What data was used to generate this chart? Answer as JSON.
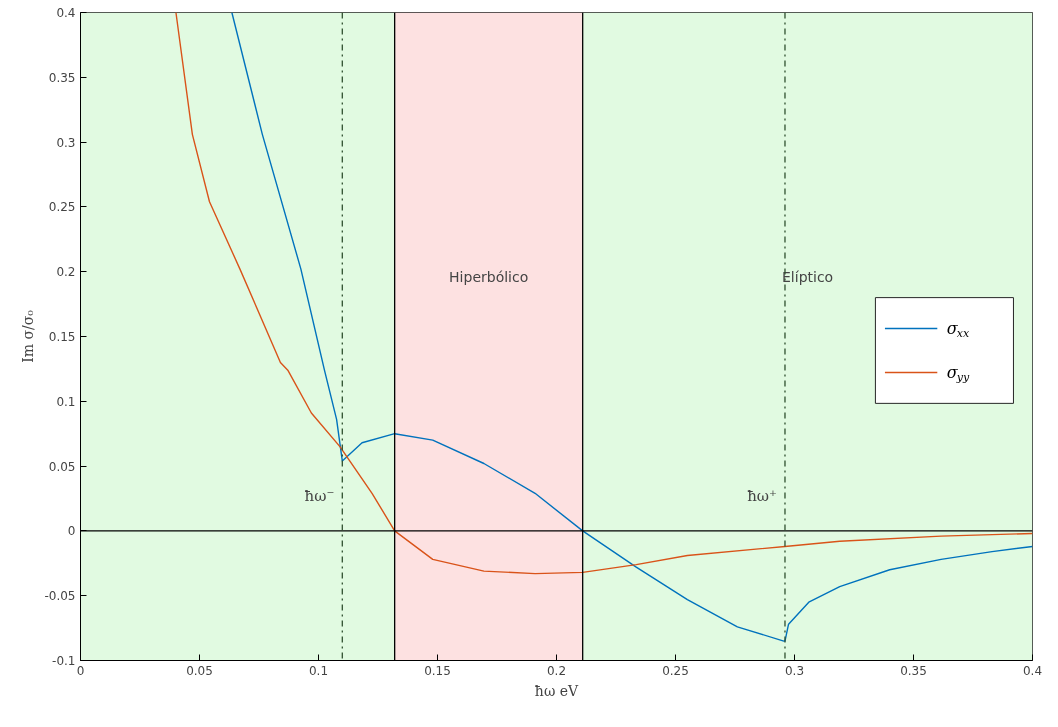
{
  "chart_data": {
    "type": "line",
    "xlabel": "ħω eV",
    "ylabel": "Im σ/σ₀",
    "xlim": [
      0,
      0.4
    ],
    "ylim": [
      -0.1,
      0.4
    ],
    "xticks": [
      0,
      0.05,
      0.1,
      0.15,
      0.2,
      0.25,
      0.3,
      0.35,
      0.4
    ],
    "yticks": [
      -0.1,
      -0.05,
      0,
      0.05,
      0.1,
      0.15,
      0.2,
      0.25,
      0.3,
      0.35,
      0.4
    ],
    "grid": false,
    "legend": "right",
    "line_style": "solid",
    "marker": "none",
    "series": [
      {
        "name": "σ$_{xx}$",
        "color": "#0072bd",
        "x": [
          0.0636,
          0.0764,
          0.0926,
          0.1025,
          0.1076,
          0.11,
          0.1183,
          0.132,
          0.148,
          0.1695,
          0.191,
          0.211,
          0.2335,
          0.255,
          0.276,
          0.2955,
          0.296,
          0.2975,
          0.306,
          0.319,
          0.34,
          0.3616,
          0.383,
          0.4
        ],
        "values": [
          0.4,
          0.306,
          0.202,
          0.124,
          0.086,
          0.054,
          0.068,
          0.075,
          0.07,
          0.052,
          0.029,
          0,
          -0.028,
          -0.053,
          -0.074,
          -0.085,
          -0.085,
          -0.072,
          -0.055,
          -0.043,
          -0.03,
          -0.022,
          -0.016,
          -0.012
        ]
      },
      {
        "name": "σ$_{yy}$",
        "color": "#d95319",
        "x": [
          0.0401,
          0.047,
          0.0542,
          0.067,
          0.084,
          0.0871,
          0.097,
          0.109,
          0.1225,
          0.132,
          0.148,
          0.1695,
          0.191,
          0.211,
          0.2335,
          0.255,
          0.296,
          0.319,
          0.3616,
          0.4
        ],
        "values": [
          0.4,
          0.306,
          0.254,
          0.202,
          0.13,
          0.124,
          0.091,
          0.065,
          0.029,
          0,
          -0.022,
          -0.031,
          -0.033,
          -0.032,
          -0.026,
          -0.019,
          -0.012,
          -0.008,
          -0.004,
          -0.002
        ]
      }
    ],
    "bands": [
      {
        "axis": "x",
        "from": 0,
        "to": 0.132,
        "label": null,
        "color": "#e1fae1"
      },
      {
        "axis": "x",
        "from": 0.132,
        "to": 0.211,
        "label": "Hiperbólico",
        "color": "#fde1e1"
      },
      {
        "axis": "x",
        "from": 0.211,
        "to": 0.4,
        "label": "Elíptico",
        "color": "#e1fae1"
      }
    ],
    "ref_lines": [
      {
        "axis": "y",
        "value": 0,
        "label": null,
        "color": "#000000",
        "line_style": "solid"
      },
      {
        "axis": "x",
        "value": 0.132,
        "label": null,
        "color": "#000000",
        "line_style": "solid"
      },
      {
        "axis": "x",
        "value": 0.211,
        "label": null,
        "color": "#000000",
        "line_style": "solid"
      },
      {
        "axis": "x",
        "value": 0.11,
        "label": "ħω⁻",
        "color": "#2f4f2f",
        "line_style": "dashdot"
      },
      {
        "axis": "x",
        "value": 0.296,
        "label": "ħω⁺",
        "color": "#2f4f2f",
        "line_style": "dashdot"
      }
    ]
  }
}
